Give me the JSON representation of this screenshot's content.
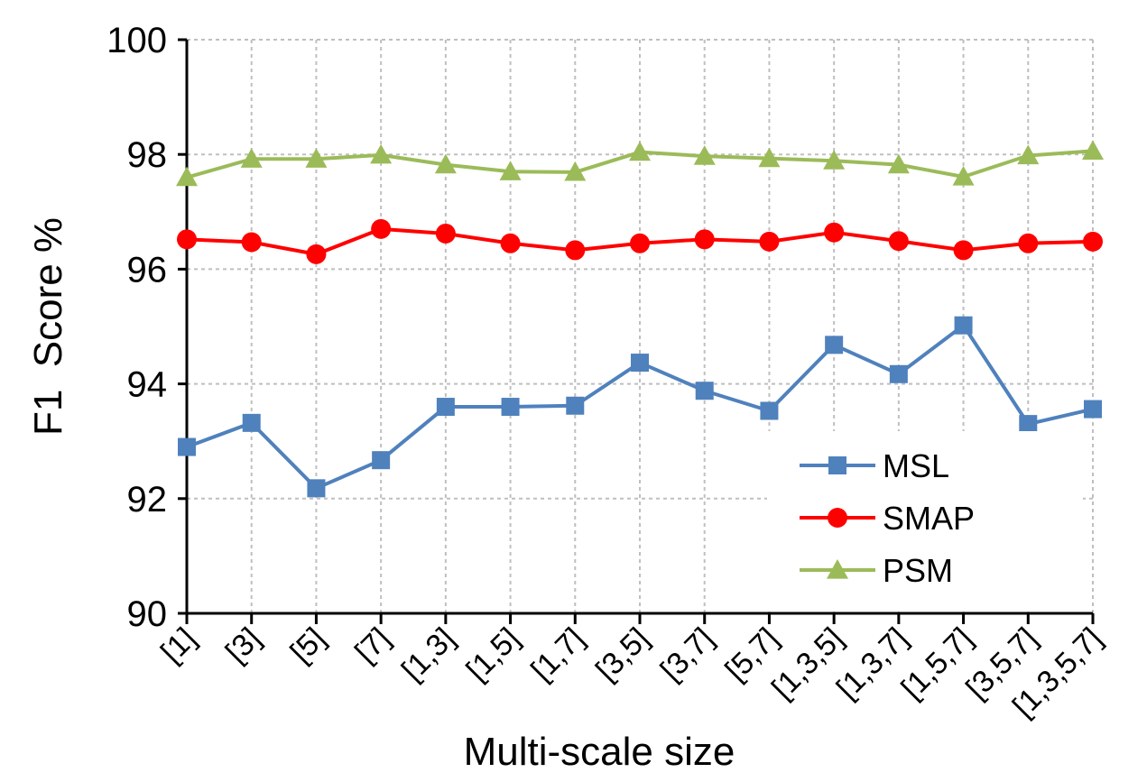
{
  "chart_data": {
    "type": "line",
    "title": "",
    "xlabel": "Multi-scale size",
    "ylabel": "F1  Score %",
    "ylim": [
      90,
      100
    ],
    "yticks": [
      90,
      92,
      94,
      96,
      98,
      100
    ],
    "grid": true,
    "legend_position": "bottom-right",
    "categories": [
      "[1]",
      "[3]",
      "[5]",
      "[7]",
      "[1,3]",
      "[1,5]",
      "[1,7]",
      "[3,5]",
      "[3,7]",
      "[5,7]",
      "[1,3,5]",
      "[1,3,7]",
      "[1,5,7]",
      "[3,5,7]",
      "[1,3,5,7]"
    ],
    "series": [
      {
        "name": "MSL",
        "color": "#4f81bd",
        "marker": "square",
        "values": [
          92.9,
          93.32,
          92.18,
          92.67,
          93.6,
          93.6,
          93.62,
          94.37,
          93.88,
          93.53,
          94.68,
          94.17,
          95.02,
          93.3,
          93.56
        ]
      },
      {
        "name": "SMAP",
        "color": "#ff0000",
        "marker": "circle",
        "values": [
          96.52,
          96.47,
          96.26,
          96.7,
          96.62,
          96.45,
          96.33,
          96.45,
          96.52,
          96.48,
          96.64,
          96.49,
          96.33,
          96.45,
          96.48
        ]
      },
      {
        "name": "PSM",
        "color": "#9bbb59",
        "marker": "triangle",
        "values": [
          97.6,
          97.92,
          97.92,
          97.99,
          97.82,
          97.7,
          97.69,
          98.04,
          97.97,
          97.93,
          97.89,
          97.82,
          97.61,
          97.98,
          98.06
        ]
      }
    ]
  }
}
